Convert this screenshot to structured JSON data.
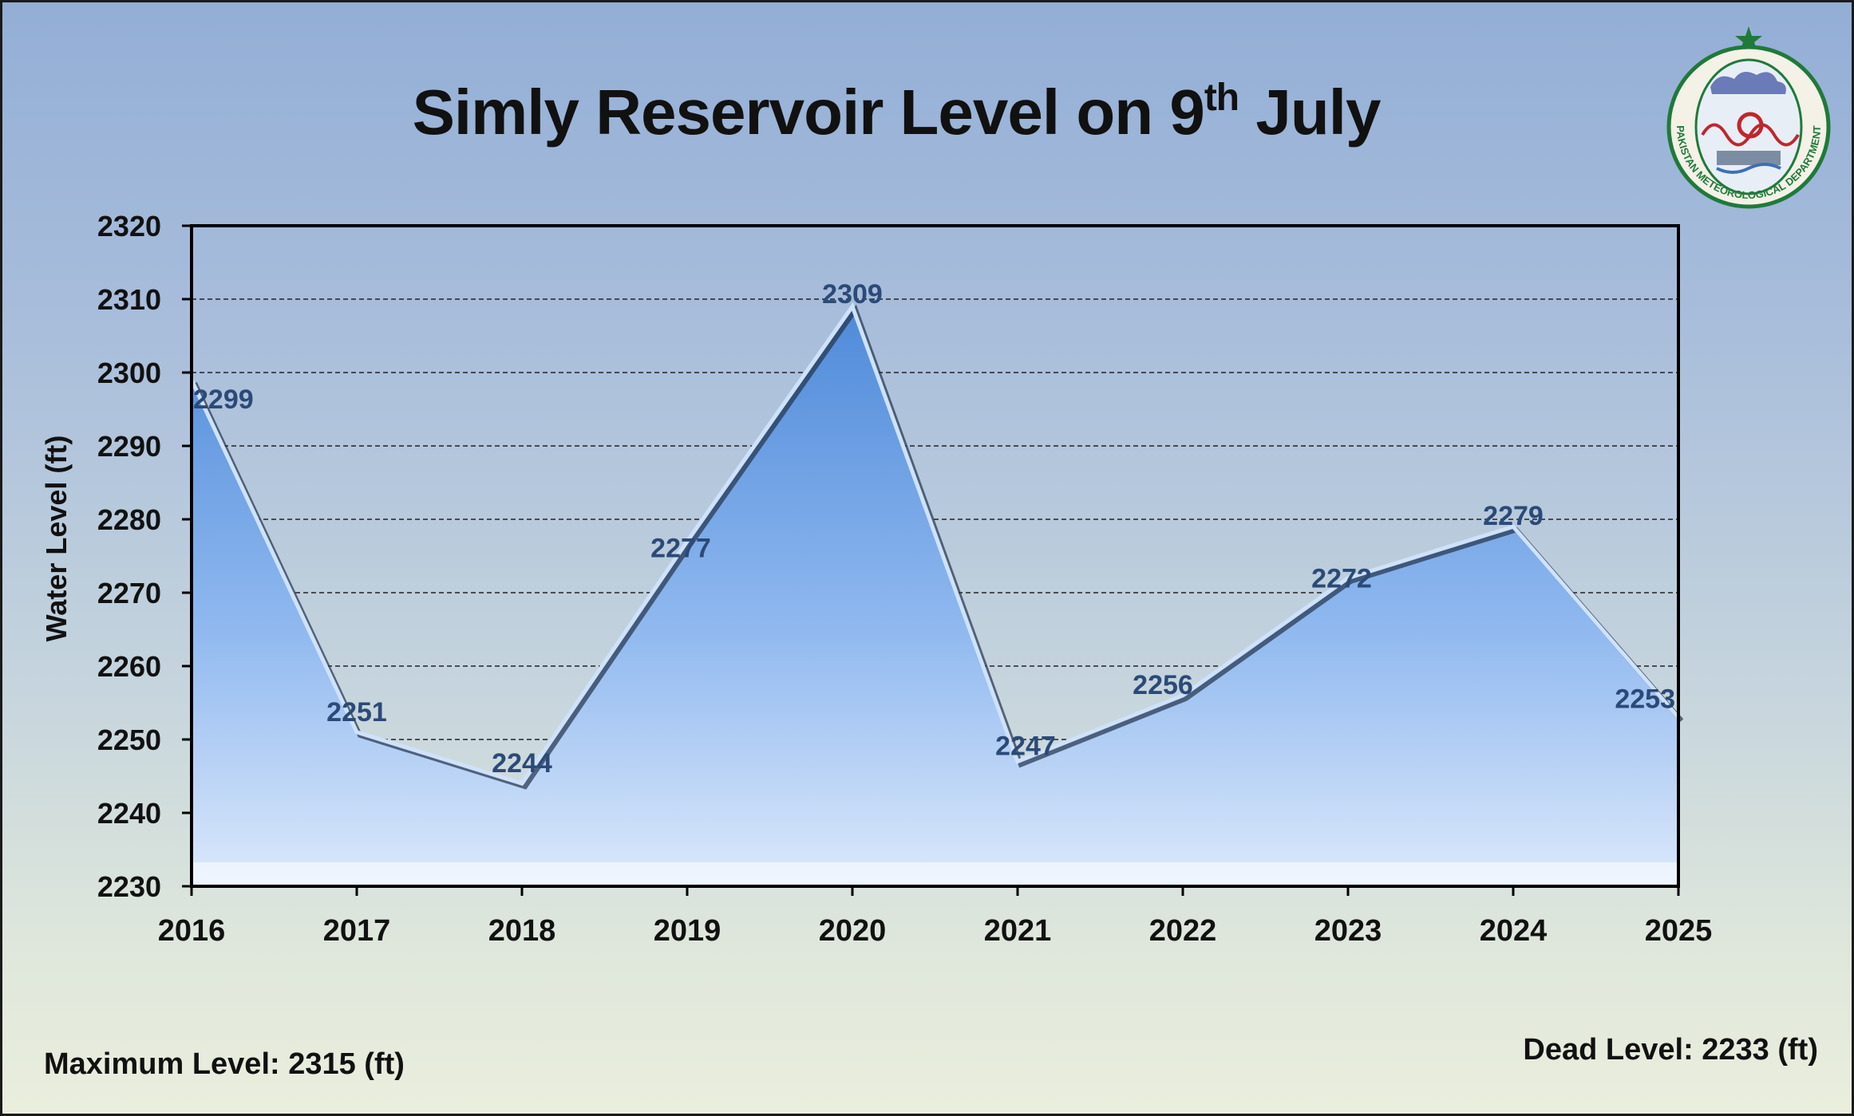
{
  "chart_data": {
    "type": "area",
    "title_main": "Simly Reservoir Level on 9",
    "title_sup": "th",
    "title_end": " July",
    "ylabel": "Water Level (ft)",
    "categories": [
      "2016",
      "2017",
      "2018",
      "2019",
      "2020",
      "2021",
      "2022",
      "2023",
      "2024",
      "2025"
    ],
    "values": [
      2299,
      2251,
      2244,
      2277,
      2309,
      2247,
      2256,
      2272,
      2279,
      2253
    ],
    "ylim": [
      2230,
      2320
    ],
    "yticks": [
      2230,
      2240,
      2250,
      2260,
      2270,
      2280,
      2290,
      2300,
      2310,
      2320
    ],
    "grid": "dashed horizontal",
    "legend": "none"
  },
  "footer": {
    "max_level": "Maximum Level: 2315 (ft)",
    "dead_level": "Dead Level: 2233 (ft)"
  },
  "logo": {
    "text": "PAKISTAN METEOROLOGICAL DEPARTMENT",
    "icon": "pmd-emblem-icon"
  },
  "colors": {
    "area_top": "#5a94df",
    "area_bottom": "#d6e6fb",
    "label": "#2b4a78",
    "axis": "#000000"
  }
}
